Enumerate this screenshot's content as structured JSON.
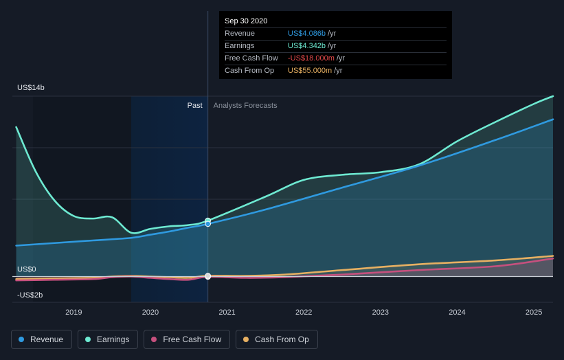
{
  "colors": {
    "revenue": "#2f9ae0",
    "earnings": "#6eead2",
    "free_cash_flow": "#c6507e",
    "cash_from_op": "#e7b062",
    "background": "#151b26",
    "past_highlight": "#0d2340"
  },
  "tooltip": {
    "date": "Sep 30 2020",
    "rows": [
      {
        "label": "Revenue",
        "value": "US$4.086b",
        "unit": "/yr",
        "color": "#2f9ae0"
      },
      {
        "label": "Earnings",
        "value": "US$4.342b",
        "unit": "/yr",
        "color": "#6eead2"
      },
      {
        "label": "Free Cash Flow",
        "value": "-US$18.000m",
        "unit": "/yr",
        "color": "#e64a4a"
      },
      {
        "label": "Cash From Op",
        "value": "US$55.000m",
        "unit": "/yr",
        "color": "#e7b062"
      }
    ]
  },
  "legend": [
    {
      "label": "Revenue",
      "color": "#2f9ae0"
    },
    {
      "label": "Earnings",
      "color": "#6eead2"
    },
    {
      "label": "Free Cash Flow",
      "color": "#c6507e"
    },
    {
      "label": "Cash From Op",
      "color": "#e7b062"
    }
  ],
  "chart_data": {
    "type": "line",
    "y_axis_labels": [
      "US$14b",
      "US$0",
      "-US$2b"
    ],
    "ylim": [
      -2,
      14
    ],
    "xlim": [
      2018.2,
      2025.25
    ],
    "x_ticks": [
      2019,
      2020,
      2021,
      2022,
      2023,
      2024,
      2025
    ],
    "past_label": "Past",
    "forecast_label": "Analysts Forecasts",
    "past_end_x": 2020.75,
    "highlight_start_x": 2019.75,
    "grid": true,
    "series": [
      {
        "name": "Revenue",
        "key": "revenue",
        "x": [
          2018.25,
          2018.75,
          2019.25,
          2019.75,
          2020.0,
          2020.25,
          2020.5,
          2020.75,
          2021.5,
          2022.5,
          2023.5,
          2024.5,
          2025.25
        ],
        "y": [
          2.4,
          2.6,
          2.8,
          3.0,
          3.25,
          3.5,
          3.8,
          4.086,
          5.2,
          6.9,
          8.6,
          10.6,
          12.2
        ]
      },
      {
        "name": "Earnings",
        "key": "earnings",
        "x": [
          2018.25,
          2018.5,
          2018.75,
          2019.0,
          2019.25,
          2019.5,
          2019.75,
          2020.0,
          2020.25,
          2020.5,
          2020.75,
          2021.5,
          2022.0,
          2022.5,
          2023.0,
          2023.5,
          2024.0,
          2024.5,
          2025.0,
          2025.25
        ],
        "y": [
          11.6,
          8.2,
          5.9,
          4.7,
          4.5,
          4.6,
          3.4,
          3.7,
          3.9,
          4.0,
          4.342,
          6.2,
          7.5,
          7.9,
          8.1,
          8.7,
          10.5,
          12.0,
          13.4,
          14.0
        ]
      },
      {
        "name": "Free Cash Flow",
        "key": "free_cash_flow",
        "x": [
          2018.25,
          2018.75,
          2019.25,
          2019.5,
          2019.75,
          2020.0,
          2020.25,
          2020.5,
          2020.75,
          2021.25,
          2021.75,
          2022.5,
          2023.5,
          2024.5,
          2025.25
        ],
        "y": [
          -0.3,
          -0.25,
          -0.2,
          -0.05,
          0.0,
          -0.1,
          -0.2,
          -0.25,
          -0.018,
          -0.1,
          -0.05,
          0.15,
          0.5,
          0.8,
          1.4
        ]
      },
      {
        "name": "Cash From Op",
        "key": "cash_from_op",
        "x": [
          2018.25,
          2018.75,
          2019.25,
          2019.5,
          2019.75,
          2020.0,
          2020.25,
          2020.5,
          2020.75,
          2021.25,
          2021.75,
          2022.5,
          2023.5,
          2024.5,
          2025.25
        ],
        "y": [
          -0.2,
          -0.15,
          -0.1,
          0.0,
          0.05,
          0.0,
          -0.05,
          -0.1,
          0.055,
          0.05,
          0.15,
          0.5,
          0.95,
          1.25,
          1.6
        ]
      }
    ]
  }
}
